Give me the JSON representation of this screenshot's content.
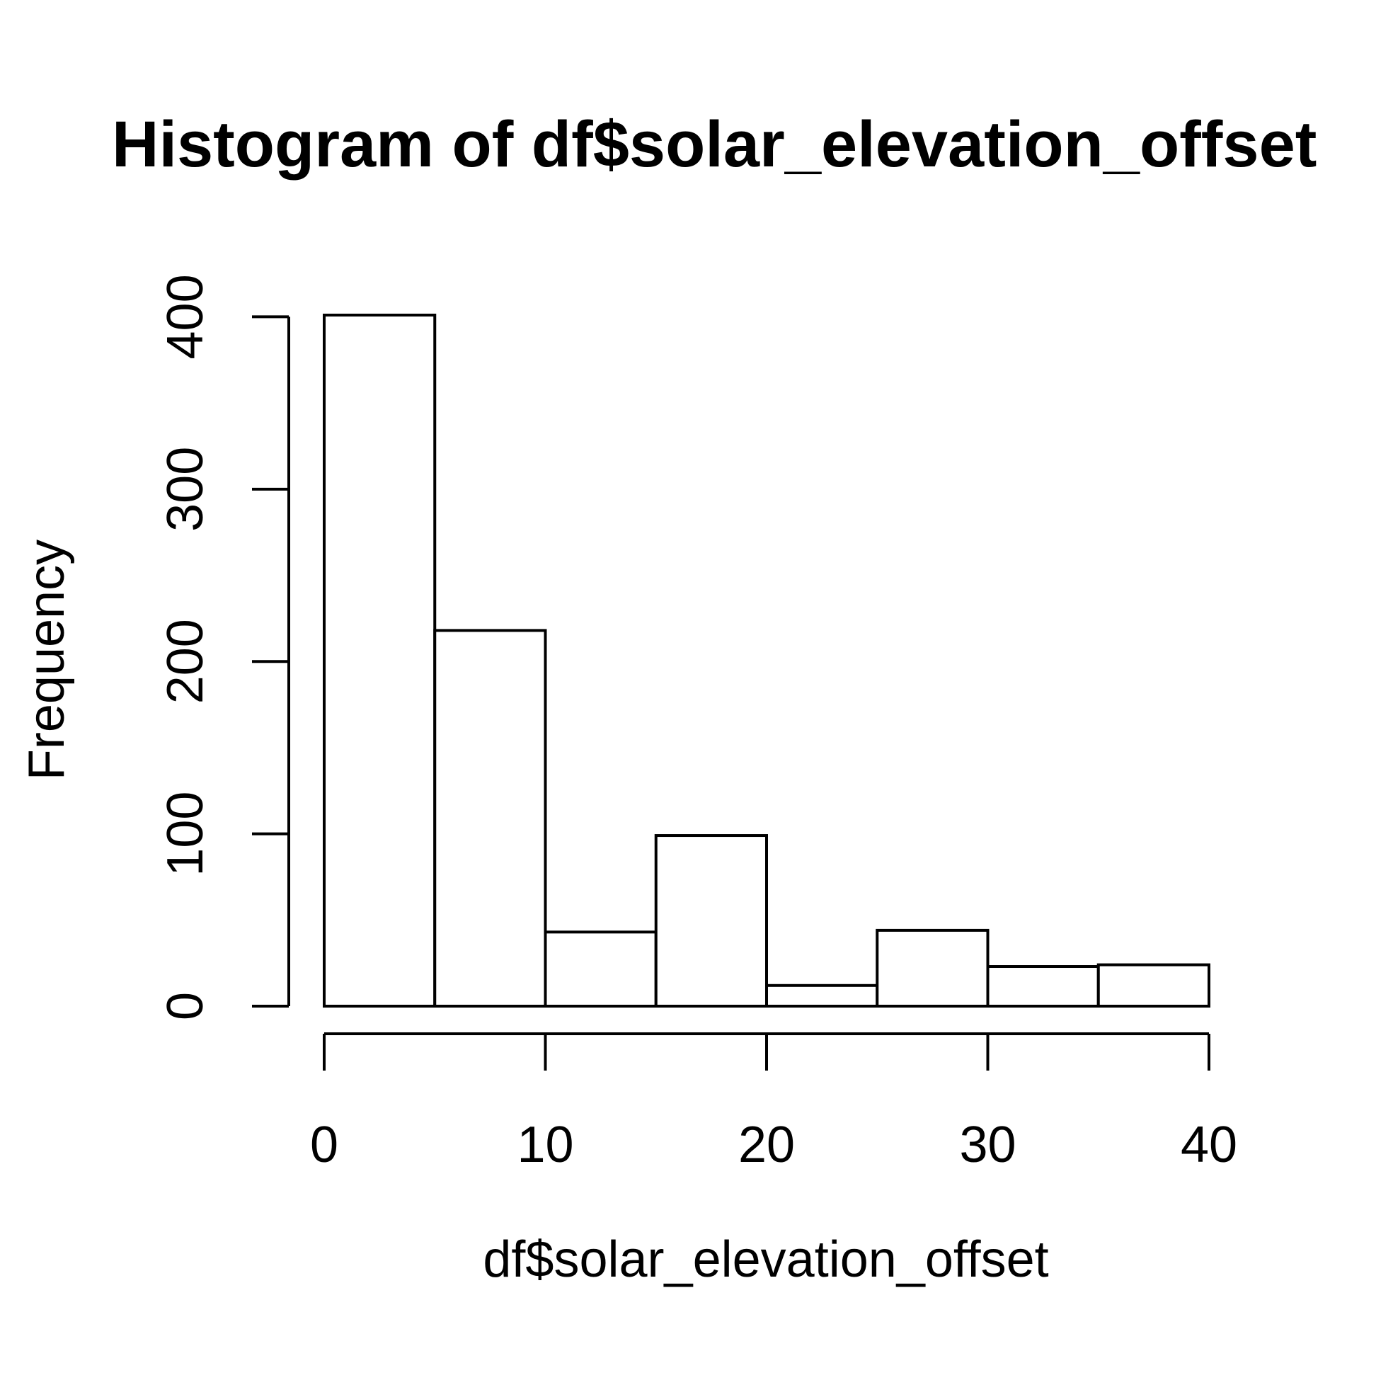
{
  "chart_data": {
    "type": "bar",
    "title": "Histogram of df$solar_elevation_offset",
    "xlabel": "df$solar_elevation_offset",
    "ylabel": "Frequency",
    "bins": [
      {
        "from": 0,
        "to": 5,
        "count": 401
      },
      {
        "from": 5,
        "to": 10,
        "count": 218
      },
      {
        "from": 10,
        "to": 15,
        "count": 43
      },
      {
        "from": 15,
        "to": 20,
        "count": 99
      },
      {
        "from": 20,
        "to": 25,
        "count": 12
      },
      {
        "from": 25,
        "to": 30,
        "count": 44
      },
      {
        "from": 30,
        "to": 35,
        "count": 23
      },
      {
        "from": 35,
        "to": 40,
        "count": 24
      }
    ],
    "xlim": [
      0,
      40
    ],
    "ylim": [
      0,
      401
    ],
    "xticks": [
      0,
      10,
      20,
      30,
      40
    ],
    "yticks": [
      0,
      100,
      200,
      300,
      400
    ],
    "grid": false,
    "legend": "none"
  }
}
